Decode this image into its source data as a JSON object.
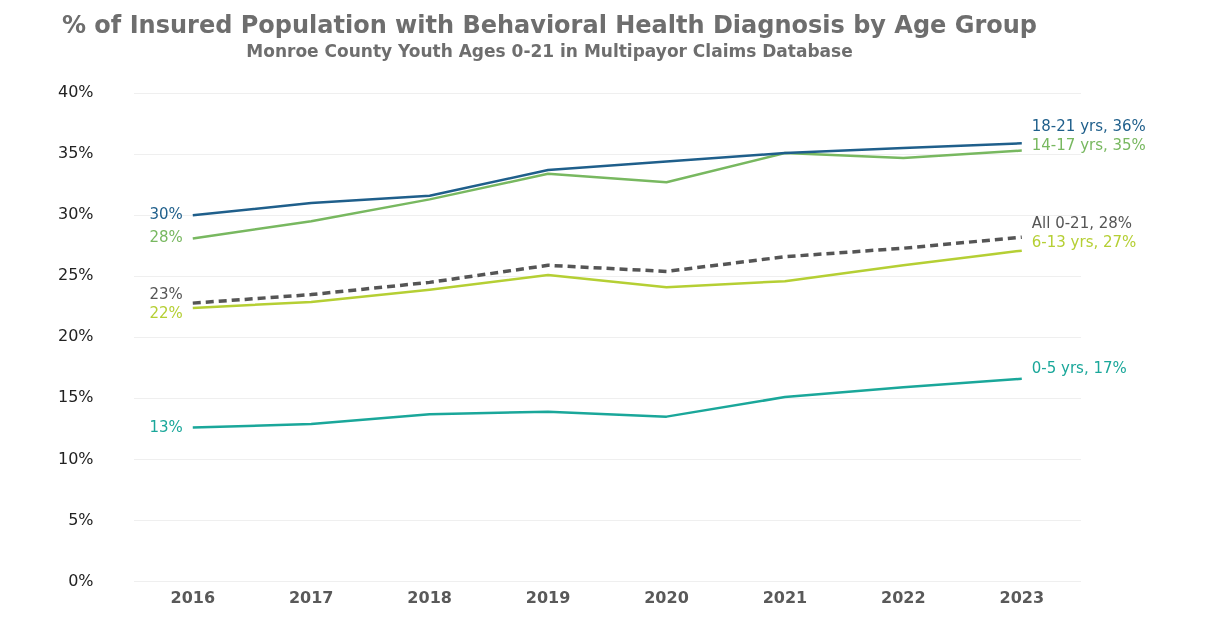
{
  "chart_data": {
    "type": "line",
    "title": "% of Insured Population with Behavioral Health Diagnosis by Age Group",
    "subtitle": "Monroe County Youth Ages 0-21 in Multipayor Claims Database",
    "categories": [
      "2016",
      "2017",
      "2018",
      "2019",
      "2020",
      "2021",
      "2022",
      "2023"
    ],
    "ylim": [
      0,
      40
    ],
    "yticks": [
      {
        "value": 0,
        "label": "0%"
      },
      {
        "value": 5,
        "label": "5%"
      },
      {
        "value": 10,
        "label": "10%"
      },
      {
        "value": 15,
        "label": "15%"
      },
      {
        "value": 20,
        "label": "20%"
      },
      {
        "value": 25,
        "label": "25%"
      },
      {
        "value": 30,
        "label": "30%"
      },
      {
        "value": 35,
        "label": "35%"
      },
      {
        "value": 40,
        "label": "40%"
      }
    ],
    "grid": "y",
    "legend": false,
    "marker": "none",
    "series": [
      {
        "color": "#1f5f8b",
        "values": [
          30.0,
          31.0,
          31.6,
          33.7,
          34.4,
          35.1,
          35.5,
          35.9
        ],
        "value_labels": [
          "30%",
          null,
          null,
          null,
          null,
          null,
          null,
          "18-21 yrs, 36%"
        ]
      },
      {
        "color": "#78b860",
        "values": [
          28.1,
          29.5,
          31.3,
          33.4,
          32.7,
          35.1,
          34.7,
          35.3
        ],
        "value_labels": [
          "28%",
          null,
          null,
          null,
          null,
          null,
          null,
          "14-17 yrs, 35%"
        ]
      },
      {
        "color": "#555555",
        "line_style": "dashed",
        "values": [
          22.8,
          23.5,
          24.5,
          25.9,
          25.4,
          26.6,
          27.3,
          28.2
        ],
        "value_labels": [
          "23%",
          null,
          null,
          null,
          null,
          null,
          null,
          "All 0-21, 28%"
        ]
      },
      {
        "color": "#b5cf34",
        "values": [
          22.4,
          22.9,
          23.9,
          25.1,
          24.1,
          24.6,
          25.9,
          27.1
        ],
        "value_labels": [
          "22%",
          null,
          null,
          null,
          null,
          null,
          null,
          "6-13 yrs, 27%"
        ]
      },
      {
        "color": "#1aa79a",
        "values": [
          12.6,
          12.9,
          13.7,
          13.9,
          13.5,
          15.1,
          15.9,
          16.6
        ],
        "value_labels": [
          "13%",
          null,
          null,
          null,
          null,
          null,
          null,
          "0-5 yrs, 17%"
        ]
      }
    ]
  }
}
